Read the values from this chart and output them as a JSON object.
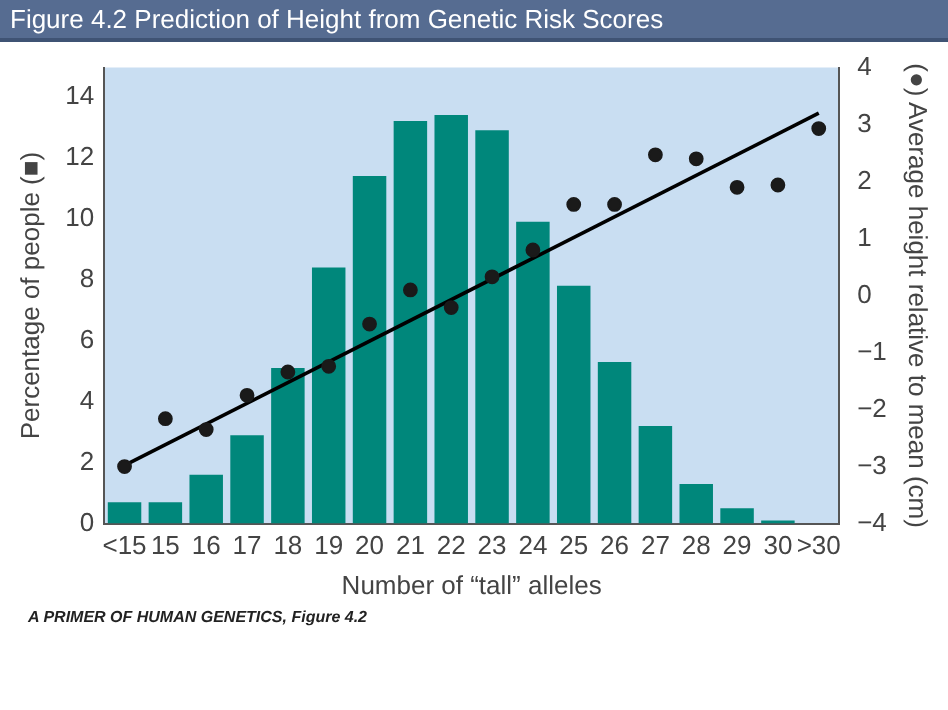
{
  "chart_data": {
    "type": "bar",
    "title": "Figure 4.2  Prediction of Height from Genetic Risk Scores",
    "xlabel": "Number of “tall” alleles",
    "ylabel": "Percentage of people (■)",
    "y2label": "(●) Average height relative to mean (cm)",
    "categories": [
      "<15",
      "15",
      "16",
      "17",
      "18",
      "19",
      "20",
      "21",
      "22",
      "23",
      "24",
      "25",
      "26",
      "27",
      "28",
      "29",
      "30",
      ">30"
    ],
    "ylim": [
      0,
      14.95
    ],
    "yticks": [
      0,
      2,
      4,
      6,
      8,
      10,
      12,
      14
    ],
    "y2lim": [
      -4,
      4
    ],
    "y2ticks": [
      -4,
      -3,
      -2,
      -1,
      0,
      1,
      2,
      3,
      4
    ],
    "grid": false,
    "legend": false,
    "series": [
      {
        "color": "#00877b",
        "values": [
          0.7,
          0.7,
          1.6,
          2.9,
          5.1,
          8.4,
          11.4,
          13.2,
          13.4,
          12.9,
          9.9,
          7.8,
          5.3,
          3.2,
          1.3,
          0.5,
          0.1,
          0
        ]
      },
      {
        "type": "scatter",
        "axis": "y2",
        "marker": "circle",
        "color": "#1a1a1a",
        "values": [
          -3.0,
          -2.16,
          -2.35,
          -1.75,
          -1.34,
          -1.24,
          -0.5,
          0.1,
          -0.21,
          0.33,
          0.8,
          1.6,
          1.6,
          2.47,
          2.4,
          1.9,
          1.94,
          2.93
        ]
      },
      {
        "type": "line",
        "axis": "y2",
        "color": "#000000",
        "x": [
          "<15",
          ">30"
        ],
        "values": [
          -2.98,
          3.2
        ]
      }
    ],
    "annotations": [
      "A PRIMER OF HUMAN GENETICS, Figure 4.2"
    ]
  }
}
